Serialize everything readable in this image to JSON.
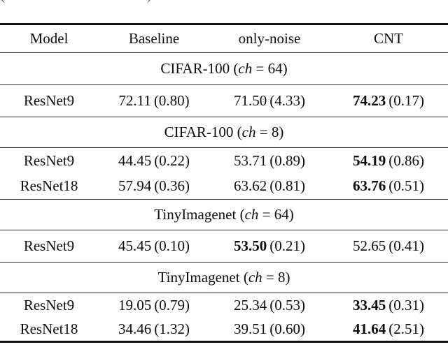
{
  "caption_fragments": {
    "left": "(",
    "right": ")"
  },
  "table": {
    "header": {
      "columns": [
        "Model",
        "Baseline",
        "only-noise",
        "CNT"
      ]
    },
    "sections": [
      {
        "title": {
          "prefix": "CIFAR-100 (",
          "italic": "ch",
          "suffix": " = 64)"
        },
        "rows": [
          {
            "model": "ResNet9",
            "baseline": {
              "mean": "72.11",
              "std": "(0.80)",
              "bold": false
            },
            "only_noise": {
              "mean": "71.50",
              "std": "(4.33)",
              "bold": false
            },
            "cnt": {
              "mean": "74.23",
              "std": "(0.17)",
              "bold": true
            }
          }
        ]
      },
      {
        "title": {
          "prefix": "CIFAR-100 (",
          "italic": "ch",
          "suffix": " = 8)"
        },
        "rows": [
          {
            "model": "ResNet9",
            "baseline": {
              "mean": "44.45",
              "std": "(0.22)",
              "bold": false
            },
            "only_noise": {
              "mean": "53.71",
              "std": "(0.89)",
              "bold": false
            },
            "cnt": {
              "mean": "54.19",
              "std": "(0.86)",
              "bold": true
            }
          },
          {
            "model": "ResNet18",
            "baseline": {
              "mean": "57.94",
              "std": "(0.36)",
              "bold": false
            },
            "only_noise": {
              "mean": "63.62",
              "std": "(0.81)",
              "bold": false
            },
            "cnt": {
              "mean": "63.76",
              "std": "(0.51)",
              "bold": true
            }
          }
        ]
      },
      {
        "title": {
          "prefix": "TinyImagenet (",
          "italic": "ch",
          "suffix": " = 64)"
        },
        "rows": [
          {
            "model": "ResNet9",
            "baseline": {
              "mean": "45.45",
              "std": "(0.10)",
              "bold": false
            },
            "only_noise": {
              "mean": "53.50",
              "std": "(0.21)",
              "bold": true
            },
            "cnt": {
              "mean": "52.65",
              "std": "(0.41)",
              "bold": false
            }
          }
        ]
      },
      {
        "title": {
          "prefix": "TinyImagenet (",
          "italic": "ch",
          "suffix": " = 8)"
        },
        "rows": [
          {
            "model": "ResNet9",
            "baseline": {
              "mean": "19.05",
              "std": "(0.79)",
              "bold": false
            },
            "only_noise": {
              "mean": "25.34",
              "std": "(0.53)",
              "bold": false
            },
            "cnt": {
              "mean": "33.45",
              "std": "(0.31)",
              "bold": true
            }
          },
          {
            "model": "ResNet18",
            "baseline": {
              "mean": "34.46",
              "std": "(1.32)",
              "bold": false
            },
            "only_noise": {
              "mean": "39.51",
              "std": "(0.60)",
              "bold": false
            },
            "cnt": {
              "mean": "41.64",
              "std": "(2.51)",
              "bold": true
            }
          }
        ]
      }
    ]
  }
}
